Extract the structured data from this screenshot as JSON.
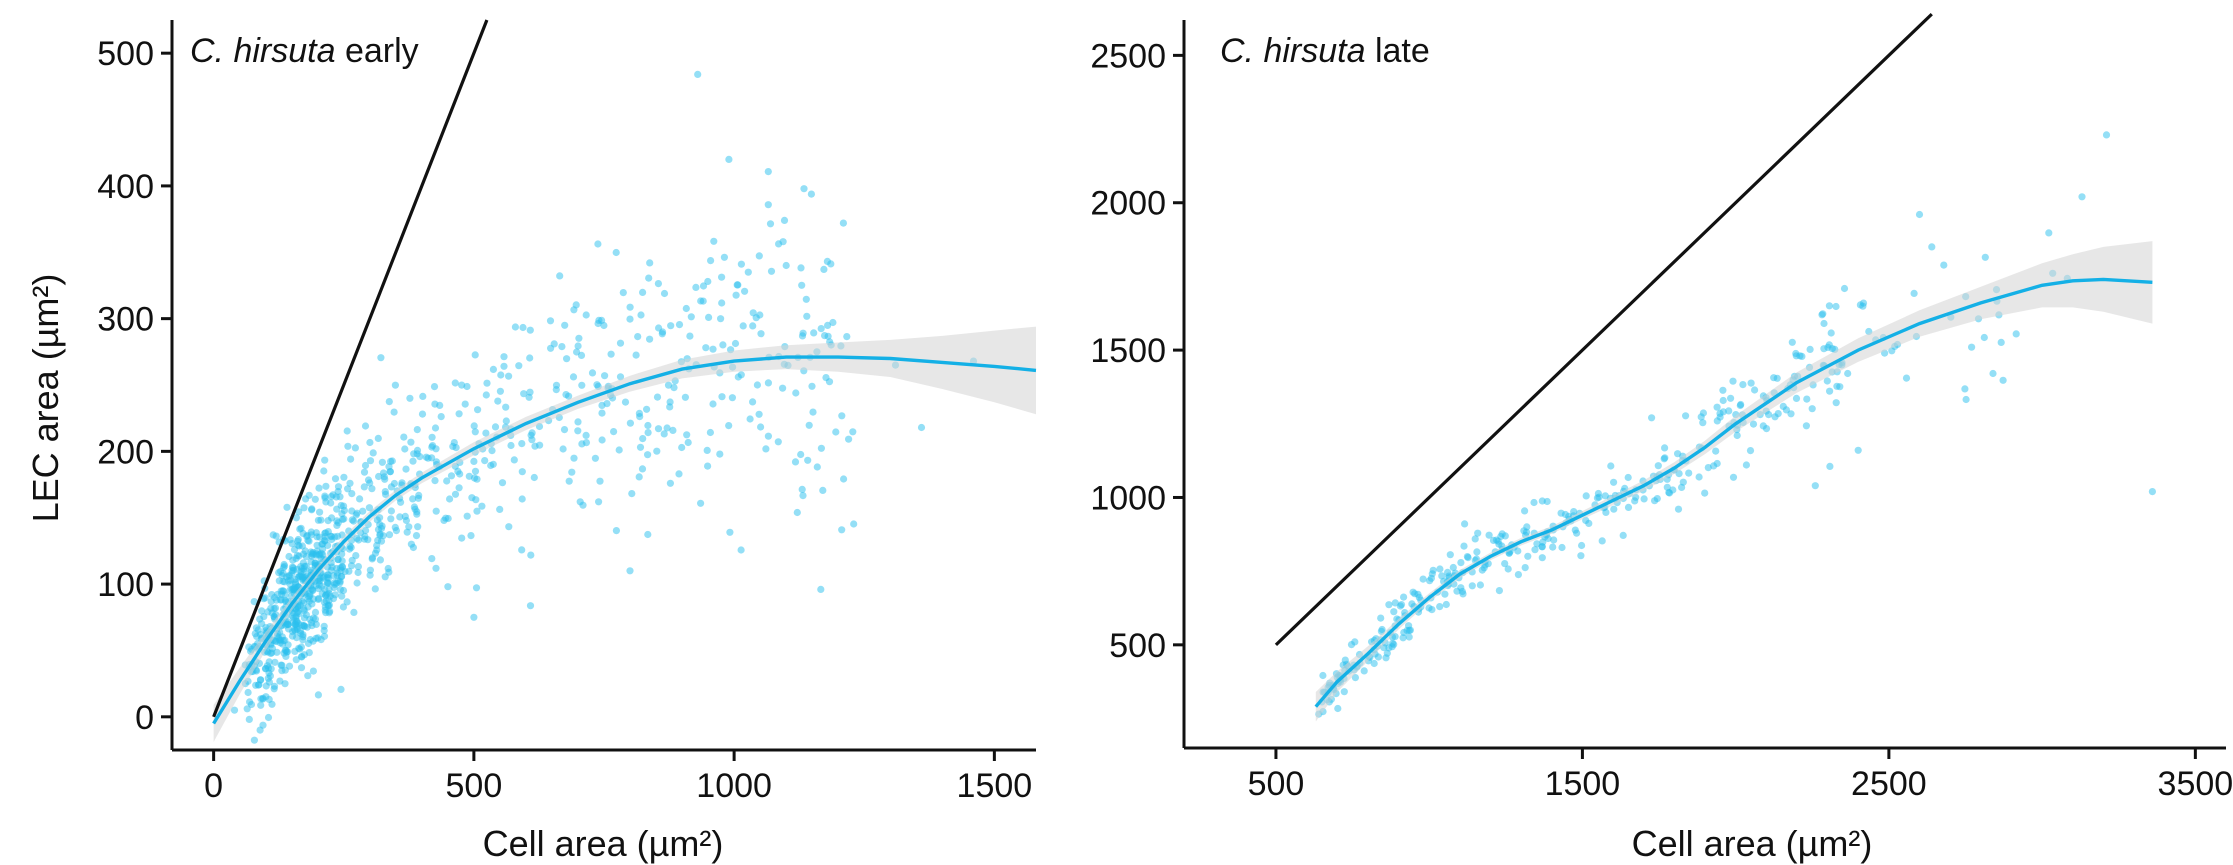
{
  "chart_data": [
    {
      "type": "scatter",
      "title_italic": "C. hirsuta",
      "title_rest": " early",
      "xlabel": "Cell area (µm²)",
      "ylabel": "LEC area (µm²)",
      "xlim": [
        -80,
        1580
      ],
      "ylim": [
        -25,
        525
      ],
      "xticks": [
        0,
        500,
        1000,
        1500
      ],
      "yticks": [
        0,
        100,
        200,
        300,
        400,
        500
      ],
      "reference_line": {
        "x": [
          0,
          525
        ],
        "y": [
          0,
          525
        ]
      },
      "fit": {
        "x": [
          0,
          50,
          100,
          150,
          200,
          250,
          300,
          350,
          400,
          500,
          600,
          700,
          800,
          900,
          1000,
          1100,
          1200,
          1300,
          1400,
          1500,
          1580
        ],
        "y": [
          -5,
          27,
          57,
          85,
          110,
          132,
          151,
          167,
          180,
          202,
          221,
          237,
          251,
          262,
          268,
          271,
          271,
          270,
          267,
          264,
          261
        ],
        "band_half_width": [
          14,
          10,
          7,
          5,
          4,
          4,
          4,
          4,
          4,
          5,
          5,
          5,
          6,
          7,
          8,
          9,
          11,
          14,
          20,
          27,
          33
        ]
      },
      "points_summary": {
        "n": 1000,
        "dense_cluster": "cell area 120–320 µm², LEC area 60–220 µm²",
        "max_point": [
          930,
          484
        ]
      },
      "colors": {
        "points": "#29bfee",
        "fit": "#14b0e6",
        "band": "#d4d4d4",
        "reference_line": "#111111"
      }
    },
    {
      "type": "scatter",
      "title_italic": "C. hirsuta",
      "title_rest": " late",
      "xlabel": "Cell area (µm²)",
      "ylabel": "",
      "xlim": [
        200,
        3600
      ],
      "ylim": [
        150,
        2620
      ],
      "xticks": [
        500,
        1500,
        2500,
        3500
      ],
      "yticks": [
        500,
        1000,
        1500,
        2000,
        2500
      ],
      "reference_line": {
        "x": [
          500,
          2640
        ],
        "y": [
          500,
          2640
        ]
      },
      "fit": {
        "x": [
          630,
          700,
          800,
          900,
          1000,
          1100,
          1200,
          1300,
          1400,
          1500,
          1600,
          1700,
          1800,
          1900,
          2000,
          2200,
          2400,
          2600,
          2800,
          3000,
          3100,
          3200,
          3360
        ],
        "y": [
          290,
          375,
          470,
          570,
          660,
          740,
          800,
          850,
          890,
          940,
          990,
          1040,
          1100,
          1170,
          1250,
          1390,
          1500,
          1590,
          1660,
          1720,
          1735,
          1740,
          1730
        ],
        "band_half_width": [
          50,
          35,
          25,
          18,
          15,
          14,
          13,
          13,
          13,
          14,
          16,
          18,
          20,
          23,
          27,
          35,
          40,
          45,
          55,
          75,
          90,
          110,
          140
        ]
      },
      "points_summary": {
        "n": 420,
        "dense_cluster": "cell area 800–1800 µm², LEC area 600–1100 µm²",
        "max_point": [
          3210,
          2230
        ]
      },
      "colors": {
        "points": "#29bfee",
        "fit": "#14b0e6",
        "band": "#d4d4d4",
        "reference_line": "#111111"
      }
    }
  ]
}
